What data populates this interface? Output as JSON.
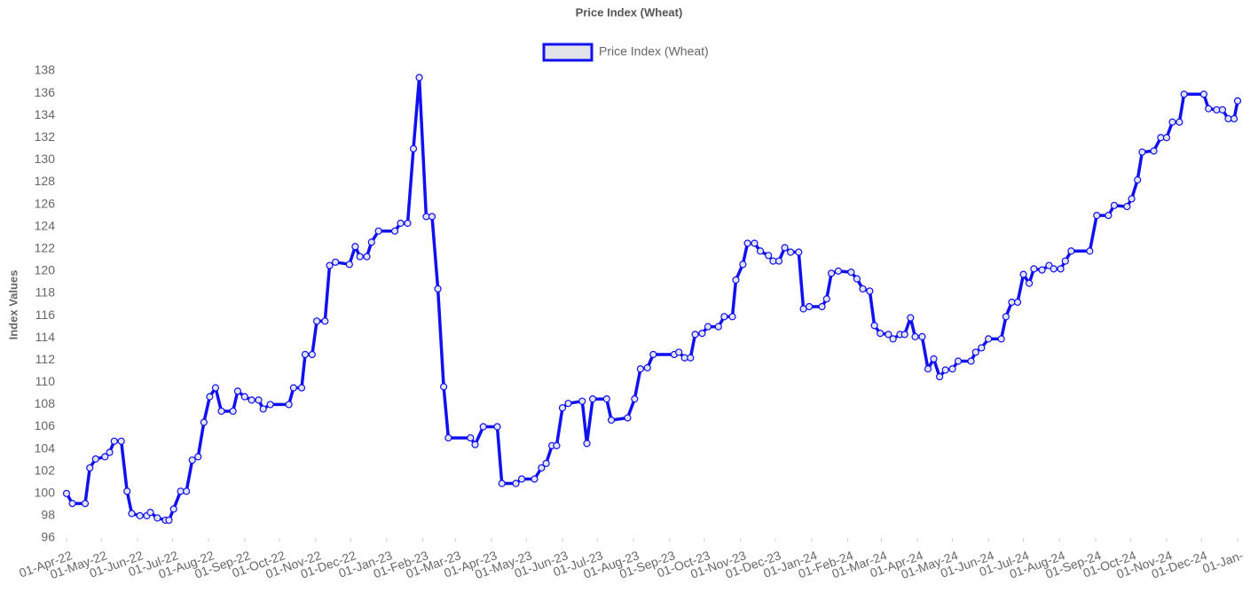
{
  "chart_data": {
    "type": "line",
    "title": "Price Index (Wheat)",
    "y_label": "Index Values",
    "legend": "top",
    "grid": false,
    "xlim": [
      "2022-04-01",
      "2025-01-01"
    ],
    "xticks": [
      {
        "value": "2022-04-01",
        "label": "01-Apr-22"
      },
      {
        "value": "2022-05-01",
        "label": "01-May-22"
      },
      {
        "value": "2022-06-01",
        "label": "01-Jun-22"
      },
      {
        "value": "2022-07-01",
        "label": "01-Jul-22"
      },
      {
        "value": "2022-08-01",
        "label": "01-Aug-22"
      },
      {
        "value": "2022-09-01",
        "label": "01-Sep-22"
      },
      {
        "value": "2022-10-01",
        "label": "01-Oct-22"
      },
      {
        "value": "2022-11-01",
        "label": "01-Nov-22"
      },
      {
        "value": "2022-12-01",
        "label": "01-Dec-22"
      },
      {
        "value": "2023-01-01",
        "label": "01-Jan-23"
      },
      {
        "value": "2023-02-01",
        "label": "01-Feb-23"
      },
      {
        "value": "2023-03-01",
        "label": "01-Mar-23"
      },
      {
        "value": "2023-04-01",
        "label": "01-Apr-23"
      },
      {
        "value": "2023-05-01",
        "label": "01-May-23"
      },
      {
        "value": "2023-06-01",
        "label": "01-Jun-23"
      },
      {
        "value": "2023-07-01",
        "label": "01-Jul-23"
      },
      {
        "value": "2023-08-01",
        "label": "01-Aug-23"
      },
      {
        "value": "2023-09-01",
        "label": "01-Sep-23"
      },
      {
        "value": "2023-10-01",
        "label": "01-Oct-23"
      },
      {
        "value": "2023-11-01",
        "label": "01-Nov-23"
      },
      {
        "value": "2023-12-01",
        "label": "01-Dec-23"
      },
      {
        "value": "2024-01-01",
        "label": "01-Jan-24"
      },
      {
        "value": "2024-02-01",
        "label": "01-Feb-24"
      },
      {
        "value": "2024-03-01",
        "label": "01-Mar-24"
      },
      {
        "value": "2024-04-01",
        "label": "01-Apr-24"
      },
      {
        "value": "2024-05-01",
        "label": "01-May-24"
      },
      {
        "value": "2024-06-01",
        "label": "01-Jun-24"
      },
      {
        "value": "2024-07-01",
        "label": "01-Jul-24"
      },
      {
        "value": "2024-08-01",
        "label": "01-Aug-24"
      },
      {
        "value": "2024-09-01",
        "label": "01-Sep-24"
      },
      {
        "value": "2024-10-01",
        "label": "01-Oct-24"
      },
      {
        "value": "2024-11-01",
        "label": "01-Nov-24"
      },
      {
        "value": "2024-12-01",
        "label": "01-Dec-24"
      },
      {
        "value": "2025-01-01",
        "label": "01-Jan-"
      }
    ],
    "ylim": [
      96,
      138
    ],
    "yticks": [
      96,
      98,
      100,
      102,
      104,
      106,
      108,
      110,
      112,
      114,
      116,
      118,
      120,
      122,
      124,
      126,
      128,
      130,
      132,
      134,
      136,
      138
    ],
    "x": [
      "2022-04-01",
      "2022-04-06",
      "2022-04-17",
      "2022-04-21",
      "2022-04-26",
      "2022-05-04",
      "2022-05-08",
      "2022-05-12",
      "2022-05-18",
      "2022-05-23",
      "2022-05-27",
      "2022-06-03",
      "2022-06-09",
      "2022-06-12",
      "2022-06-18",
      "2022-06-25",
      "2022-06-28",
      "2022-07-02",
      "2022-07-08",
      "2022-07-13",
      "2022-07-18",
      "2022-07-23",
      "2022-07-28",
      "2022-08-02",
      "2022-08-07",
      "2022-08-12",
      "2022-08-22",
      "2022-08-26",
      "2022-09-01",
      "2022-09-07",
      "2022-09-13",
      "2022-09-17",
      "2022-09-23",
      "2022-10-09",
      "2022-10-13",
      "2022-10-20",
      "2022-10-23",
      "2022-10-29",
      "2022-11-02",
      "2022-11-09",
      "2022-11-13",
      "2022-11-18",
      "2022-11-30",
      "2022-12-05",
      "2022-12-09",
      "2022-12-15",
      "2022-12-19",
      "2022-12-25",
      "2023-01-08",
      "2023-01-13",
      "2023-01-19",
      "2023-01-24",
      "2023-01-29",
      "2023-02-04",
      "2023-02-09",
      "2023-02-14",
      "2023-02-19",
      "2023-02-23",
      "2023-03-14",
      "2023-03-18",
      "2023-03-25",
      "2023-04-06",
      "2023-04-10",
      "2023-04-22",
      "2023-04-27",
      "2023-05-08",
      "2023-05-14",
      "2023-05-18",
      "2023-05-23",
      "2023-05-27",
      "2023-06-01",
      "2023-06-06",
      "2023-06-18",
      "2023-06-22",
      "2023-06-27",
      "2023-07-09",
      "2023-07-13",
      "2023-07-27",
      "2023-08-02",
      "2023-08-07",
      "2023-08-13",
      "2023-08-18",
      "2023-09-05",
      "2023-09-09",
      "2023-09-14",
      "2023-09-19",
      "2023-09-23",
      "2023-09-29",
      "2023-10-04",
      "2023-10-13",
      "2023-10-18",
      "2023-10-25",
      "2023-10-28",
      "2023-11-03",
      "2023-11-07",
      "2023-11-13",
      "2023-11-18",
      "2023-11-25",
      "2023-11-29",
      "2023-12-04",
      "2023-12-09",
      "2023-12-14",
      "2023-12-21",
      "2023-12-25",
      "2023-12-30",
      "2024-01-10",
      "2024-01-14",
      "2024-01-18",
      "2024-01-24",
      "2024-02-04",
      "2024-02-09",
      "2024-02-14",
      "2024-02-20",
      "2024-02-24",
      "2024-02-29",
      "2024-03-07",
      "2024-03-11",
      "2024-03-17",
      "2024-03-21",
      "2024-03-26",
      "2024-03-30",
      "2024-04-05",
      "2024-04-10",
      "2024-04-15",
      "2024-04-20",
      "2024-04-25",
      "2024-05-01",
      "2024-05-06",
      "2024-05-17",
      "2024-05-21",
      "2024-05-26",
      "2024-06-01",
      "2024-06-12",
      "2024-06-16",
      "2024-06-21",
      "2024-06-26",
      "2024-07-01",
      "2024-07-06",
      "2024-07-10",
      "2024-07-17",
      "2024-07-23",
      "2024-07-27",
      "2024-08-02",
      "2024-08-06",
      "2024-08-11",
      "2024-08-27",
      "2024-09-02",
      "2024-09-12",
      "2024-09-17",
      "2024-09-28",
      "2024-10-02",
      "2024-10-07",
      "2024-10-11",
      "2024-10-21",
      "2024-10-27",
      "2024-11-01",
      "2024-11-06",
      "2024-11-12",
      "2024-11-16",
      "2024-12-03",
      "2024-12-07",
      "2024-12-14",
      "2024-12-19",
      "2024-12-24",
      "2024-12-29",
      "2025-01-01"
    ],
    "series": [
      {
        "name": "Price Index (Wheat)",
        "color": "#1010f0",
        "marker_fill": "#e3e3ea",
        "values": [
          100.0,
          99.1,
          99.1,
          102.3,
          103.1,
          103.3,
          103.7,
          104.7,
          104.7,
          100.2,
          98.2,
          98.0,
          98.0,
          98.3,
          97.8,
          97.6,
          97.6,
          98.6,
          100.2,
          100.2,
          103.0,
          103.3,
          106.4,
          108.7,
          109.5,
          107.4,
          107.4,
          109.2,
          108.7,
          108.4,
          108.4,
          107.6,
          108.0,
          108.0,
          109.5,
          109.5,
          112.5,
          112.5,
          115.5,
          115.5,
          120.5,
          120.8,
          120.6,
          122.2,
          121.3,
          121.3,
          122.6,
          123.6,
          123.6,
          124.3,
          124.3,
          131.0,
          137.4,
          124.9,
          124.9,
          118.4,
          109.6,
          105.0,
          105.0,
          104.4,
          106.0,
          106.0,
          100.9,
          100.9,
          101.3,
          101.3,
          102.3,
          102.7,
          104.3,
          104.3,
          107.7,
          108.1,
          108.3,
          104.5,
          108.5,
          108.5,
          106.6,
          106.8,
          108.5,
          111.2,
          111.3,
          112.5,
          112.5,
          112.7,
          112.2,
          112.2,
          114.3,
          114.4,
          115.0,
          115.0,
          115.9,
          115.9,
          119.2,
          120.6,
          122.5,
          122.5,
          121.8,
          121.4,
          120.9,
          120.9,
          122.1,
          121.7,
          121.7,
          116.6,
          116.8,
          116.8,
          117.5,
          119.8,
          120.0,
          119.9,
          119.3,
          118.4,
          118.2,
          115.1,
          114.4,
          114.3,
          113.9,
          114.3,
          114.3,
          115.8,
          114.1,
          114.1,
          111.2,
          112.1,
          110.5,
          111.1,
          111.2,
          111.9,
          111.9,
          112.7,
          113.1,
          113.9,
          113.9,
          115.9,
          117.2,
          117.2,
          119.7,
          118.9,
          120.2,
          120.1,
          120.5,
          120.2,
          120.2,
          120.9,
          121.8,
          121.8,
          125.0,
          125.0,
          125.9,
          125.8,
          126.5,
          128.2,
          130.7,
          130.8,
          132.0,
          132.0,
          133.4,
          133.4,
          135.9,
          135.9,
          134.6,
          134.5,
          134.5,
          133.7,
          133.7,
          135.3
        ]
      }
    ]
  }
}
